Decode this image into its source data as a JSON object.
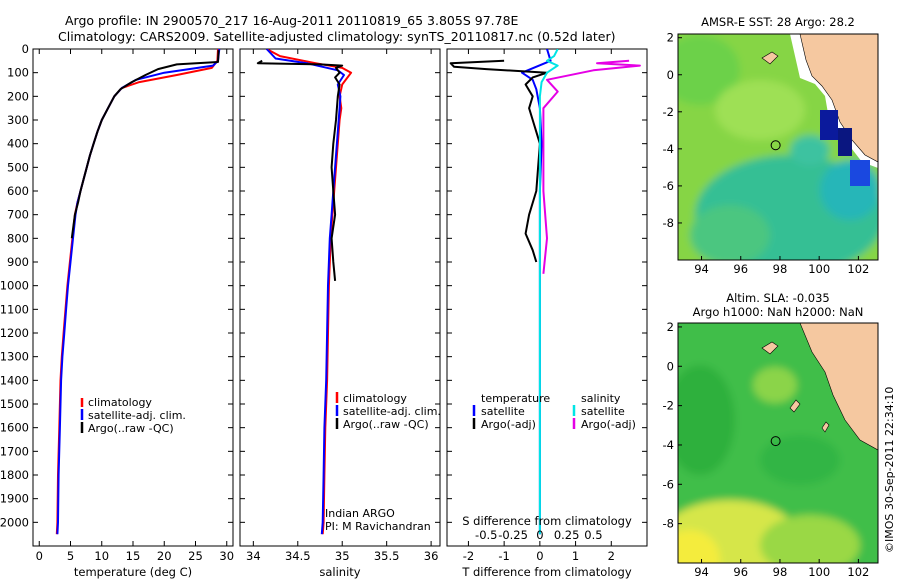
{
  "header": {
    "title_line1": "Argo profile: IN 2900570_217 16-Aug-2011 20110819_65 3.805S 97.78E",
    "title_line2": "Climatology: CARS2009. Satellite-adjusted climatology: synTS_20110817.nc (0.52d later)"
  },
  "colors": {
    "climatology": "#ff0000",
    "satellite": "#0000ff",
    "argo": "#000000",
    "s_satellite": "#00e5e5",
    "s_argo": "#e500e5",
    "land": "#f5c8a0"
  },
  "chart_data": [
    {
      "type": "line",
      "name": "temperature-panel",
      "xlabel": "temperature (deg C)",
      "ylabel": "",
      "xlim": [
        -1,
        31
      ],
      "ylim": [
        2100,
        0
      ],
      "xticks": [
        0,
        5,
        10,
        15,
        20,
        25,
        30
      ],
      "yticks": [
        0,
        100,
        200,
        300,
        400,
        500,
        600,
        700,
        800,
        900,
        1000,
        1100,
        1200,
        1300,
        1400,
        1500,
        1600,
        1700,
        1800,
        1900,
        2000
      ],
      "legend": [
        "climatology",
        "satellite-adj. clim.",
        "Argo(..raw -QC)"
      ],
      "series": [
        {
          "key": "climatology",
          "x": [
            28.6,
            28.5,
            27.6,
            22,
            16,
            13.2,
            12,
            11,
            10,
            9.3,
            8.7,
            8.1,
            7.6,
            7.1,
            6.6,
            6.1,
            5.7,
            5.3,
            4.9,
            4.5,
            4.2,
            3.9,
            3.6,
            3.4,
            3.2,
            3.0,
            2.9,
            2.8
          ],
          "y": [
            0,
            50,
            80,
            110,
            140,
            165,
            200,
            250,
            300,
            350,
            400,
            450,
            500,
            550,
            600,
            650,
            700,
            800,
            900,
            1000,
            1100,
            1200,
            1300,
            1400,
            1600,
            1800,
            2000,
            2050
          ]
        },
        {
          "key": "satellite",
          "x": [
            28.8,
            28.6,
            27.8,
            20,
            15.5,
            13.2,
            12,
            11,
            10,
            9.3,
            8.7,
            8.1,
            7.6,
            7.1,
            6.6,
            6.1,
            5.8,
            5.4,
            5.0,
            4.6,
            4.3,
            4.0,
            3.7,
            3.5,
            3.3,
            3.1,
            3.0,
            2.9
          ],
          "y": [
            0,
            50,
            70,
            100,
            130,
            165,
            200,
            250,
            300,
            350,
            400,
            450,
            500,
            550,
            600,
            650,
            700,
            800,
            900,
            1000,
            1100,
            1200,
            1300,
            1400,
            1600,
            1800,
            2000,
            2050
          ]
        },
        {
          "key": "argo",
          "x": [
            28.7,
            28.6,
            22,
            19,
            17,
            14.8,
            13,
            12,
            11,
            10,
            9.3,
            8.7,
            8.1,
            7.6,
            7.1,
            6.6,
            6.2,
            5.7,
            5.2
          ],
          "y": [
            5,
            55,
            65,
            85,
            110,
            140,
            170,
            200,
            250,
            300,
            350,
            400,
            450,
            500,
            550,
            600,
            650,
            700,
            800
          ]
        }
      ]
    },
    {
      "type": "line",
      "name": "salinity-panel",
      "xlabel": "salinity",
      "ylabel": "",
      "xlim": [
        33.85,
        36.1
      ],
      "ylim": [
        2100,
        0
      ],
      "xticks": [
        34,
        34.5,
        35,
        35.5,
        36
      ],
      "xticklabels": [
        "34",
        "34.5",
        "35",
        "35.5",
        "36"
      ],
      "legend": [
        "climatology",
        "satellite-adj. clim.",
        "Argo(..raw -QC)"
      ],
      "annotation": [
        "Indian ARGO",
        "PI: M Ravichandran"
      ],
      "series": [
        {
          "key": "climatology",
          "x": [
            34.15,
            34.3,
            34.7,
            35.0,
            35.1,
            35.0,
            34.97,
            34.99,
            34.97,
            34.95,
            34.93,
            34.91,
            34.89,
            34.87,
            34.86,
            34.85,
            34.84,
            34.83,
            34.82,
            34.81,
            34.8,
            34.79,
            34.78
          ],
          "y": [
            0,
            30,
            60,
            80,
            100,
            150,
            200,
            250,
            300,
            400,
            500,
            600,
            700,
            800,
            900,
            1000,
            1200,
            1400,
            1500,
            1600,
            1800,
            2000,
            2050
          ]
        },
        {
          "key": "satellite",
          "x": [
            34.15,
            34.25,
            34.6,
            34.95,
            35.02,
            34.95,
            34.98,
            34.97,
            34.96,
            34.94,
            34.92,
            34.9,
            34.88,
            34.86,
            34.85,
            34.84,
            34.83,
            34.82,
            34.81,
            34.8,
            34.79,
            34.78,
            34.77
          ],
          "y": [
            0,
            40,
            60,
            90,
            110,
            150,
            200,
            250,
            300,
            400,
            500,
            600,
            700,
            800,
            900,
            1000,
            1200,
            1400,
            1500,
            1600,
            1800,
            2000,
            2050
          ]
        },
        {
          "key": "argo",
          "x": [
            34.1,
            34.05,
            34.75,
            35.0,
            34.93,
            34.97,
            34.92,
            34.97,
            34.95,
            34.93,
            34.9,
            34.88,
            34.9,
            34.92,
            34.88,
            34.9,
            34.92
          ],
          "y": [
            50,
            60,
            65,
            70,
            80,
            100,
            120,
            150,
            200,
            300,
            400,
            500,
            600,
            700,
            800,
            900,
            980
          ]
        }
      ]
    },
    {
      "type": "line",
      "name": "difference-panel",
      "xlabel": "T difference from climatology",
      "xlabel_top": "S difference from climatology",
      "xlim": [
        -2.6,
        3.0
      ],
      "ylim": [
        2100,
        0
      ],
      "xticks": [
        -2,
        -1,
        0,
        1,
        2
      ],
      "xticks_top": [
        -0.5,
        -0.25,
        0,
        0.25,
        0.5
      ],
      "xticks_top_labels": [
        "-0.5",
        "-0.25",
        "0",
        "0.25",
        "0.5"
      ],
      "legend_temperature": [
        "temperature",
        "satellite",
        "Argo(-adj)"
      ],
      "legend_salinity": [
        "salinity",
        "satellite",
        "Argo(-adj)"
      ],
      "series": [
        {
          "key": "t_sat",
          "x": [
            0.2,
            0.3,
            -0.5,
            -0.2,
            -0.1,
            0,
            0.05,
            0,
            0,
            0,
            0,
            0,
            0
          ],
          "y": [
            0,
            50,
            100,
            130,
            170,
            250,
            400,
            600,
            900,
            1200,
            1500,
            1800,
            2050
          ]
        },
        {
          "key": "t_argo",
          "x": [
            -1,
            -2.5,
            -2.4,
            -1.5,
            0.2,
            -0.2,
            -0.4,
            -0.2,
            -0.3,
            -0.2,
            -0.1,
            0,
            -0.1,
            -0.3,
            -0.4,
            -0.2,
            -0.1
          ],
          "y": [
            50,
            60,
            75,
            85,
            100,
            120,
            150,
            200,
            250,
            300,
            350,
            400,
            600,
            700,
            780,
            850,
            900
          ]
        },
        {
          "key": "s_sat",
          "x": [
            0.5,
            0.4,
            0.2,
            0.5,
            0.2,
            0.05,
            0,
            0,
            0,
            0,
            0
          ],
          "y": [
            0,
            30,
            50,
            70,
            100,
            140,
            200,
            500,
            1000,
            1500,
            2050
          ]
        },
        {
          "key": "s_argo",
          "x": [
            2.5,
            1.6,
            2.8,
            1.5,
            0.2,
            0.5,
            0.1,
            0.1,
            0.1,
            0.2,
            0.1
          ],
          "y": [
            50,
            60,
            70,
            90,
            130,
            180,
            250,
            400,
            600,
            800,
            950
          ]
        }
      ]
    },
    {
      "type": "heatmap",
      "name": "sst-map",
      "title": "AMSR-E SST: 28 Argo: 28.2",
      "xlim": [
        92.8,
        103
      ],
      "ylim": [
        -10,
        2.2
      ],
      "xticks": [
        94,
        96,
        98,
        100,
        102
      ],
      "yticks": [
        2,
        0,
        -2,
        -4,
        -6,
        -8
      ],
      "argo_position": {
        "lon": 97.78,
        "lat": -3.805
      }
    },
    {
      "type": "heatmap",
      "name": "sla-map",
      "title_line1": "Altim. SLA: -0.035",
      "title_line2": "Argo h1000: NaN h2000: NaN",
      "xlim": [
        92.8,
        103
      ],
      "ylim": [
        -10,
        2.2
      ],
      "xticks": [
        94,
        96,
        98,
        100,
        102
      ],
      "yticks": [
        2,
        0,
        -2,
        -4,
        -6,
        -8
      ],
      "argo_position": {
        "lon": 97.78,
        "lat": -3.805
      }
    }
  ],
  "footer": {
    "watermark": "©IMOS 30-Sep-2011 22:34:10"
  }
}
